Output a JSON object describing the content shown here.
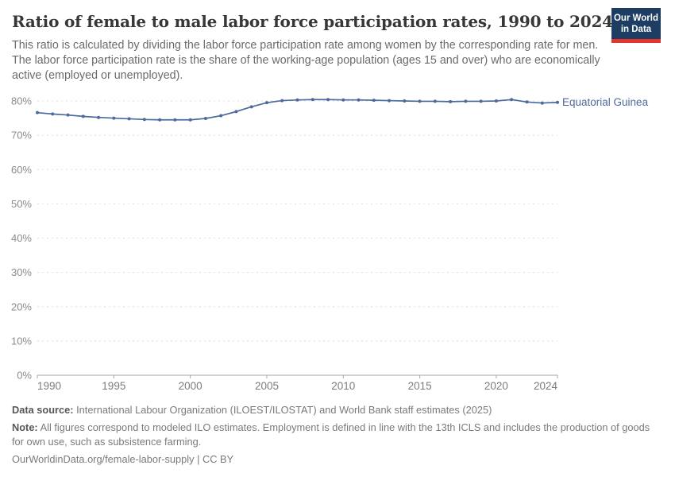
{
  "header": {
    "title": "Ratio of female to male labor force participation rates, 1990 to 2024",
    "subtitle": "This ratio is calculated by dividing the labor force participation rate among women by the corresponding rate for men. The labor force participation rate is the share of the working-age population (ages 15 and over) who are economically active (employed or unemployed).",
    "logo": {
      "line1": "Our World",
      "line2": "in Data",
      "bg_color": "#1d3d63",
      "accent_color": "#e0362c"
    }
  },
  "chart_data": {
    "type": "line",
    "title": "Ratio of female to male labor force participation rates, 1990 to 2024",
    "x": [
      1990,
      1991,
      1992,
      1993,
      1994,
      1995,
      1996,
      1997,
      1998,
      1999,
      2000,
      2001,
      2002,
      2003,
      2004,
      2005,
      2006,
      2007,
      2008,
      2009,
      2010,
      2011,
      2012,
      2013,
      2014,
      2015,
      2016,
      2017,
      2018,
      2019,
      2020,
      2021,
      2022,
      2023,
      2024
    ],
    "series": [
      {
        "name": "Equatorial Guinea",
        "color": "#4c6a9c",
        "values": [
          76.6,
          76.2,
          75.9,
          75.5,
          75.2,
          75.0,
          74.8,
          74.6,
          74.5,
          74.5,
          74.5,
          74.9,
          75.7,
          76.9,
          78.3,
          79.5,
          80.1,
          80.3,
          80.4,
          80.4,
          80.3,
          80.3,
          80.2,
          80.1,
          80.0,
          79.9,
          79.9,
          79.8,
          79.9,
          79.9,
          80.0,
          80.4,
          79.7,
          79.4,
          79.6
        ]
      }
    ],
    "ylim": [
      0,
      80
    ],
    "ytick_step": 10,
    "ytick_suffix": "%",
    "xticks": [
      1990,
      1995,
      2000,
      2005,
      2010,
      2015,
      2020,
      2024
    ],
    "grid": "horizontal-dashed",
    "legend_position": "end-of-line-label"
  },
  "footer": {
    "data_source_label": "Data source:",
    "data_source": "International Labour Organization (ILOEST/ILOSTAT) and World Bank staff estimates (2025)",
    "note_label": "Note:",
    "note": "All figures correspond to modeled ILO estimates. Employment is defined in line with the 13th ICLS and includes the production of goods for own use, such as subsistence farming.",
    "url": "OurWorldinData.org/female-labor-supply",
    "separator": "|",
    "license": "CC BY"
  }
}
